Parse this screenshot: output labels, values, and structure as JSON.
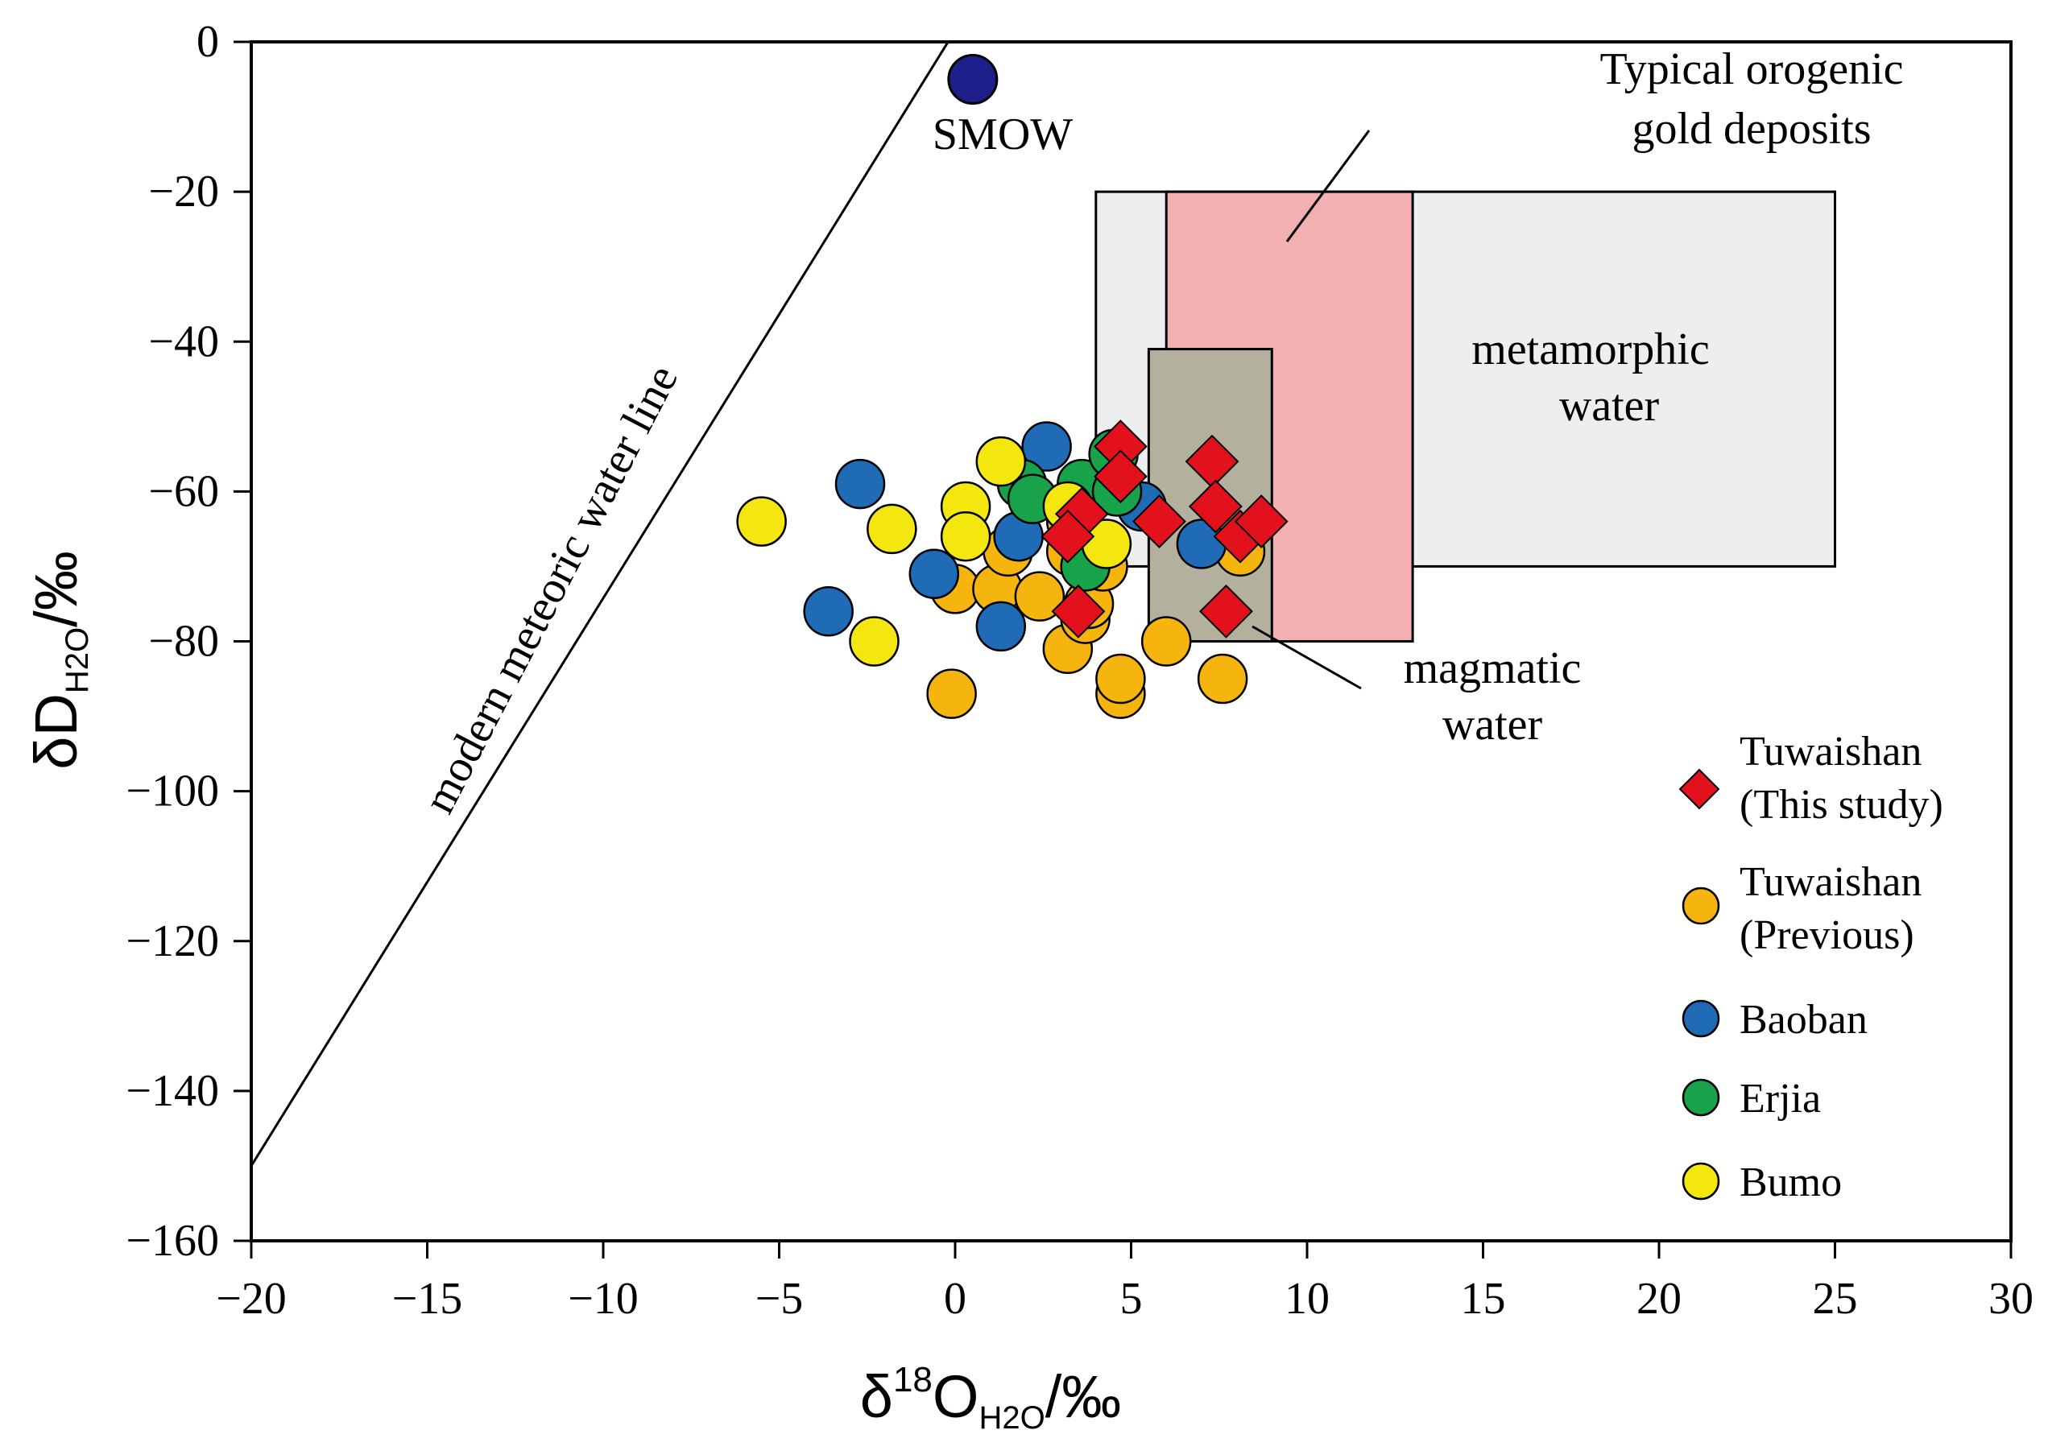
{
  "chart_data": {
    "type": "scatter",
    "title": "",
    "xlabel": {
      "delta": "δ",
      "sup": "18",
      "main": "O",
      "sub": "H2O",
      "unit": "/‰"
    },
    "ylabel": {
      "main": "δD",
      "sub": "H2O",
      "unit": "/‰"
    },
    "xlim": [
      -20,
      30
    ],
    "ylim": [
      -160,
      0
    ],
    "x_ticks": [
      -20,
      -15,
      -10,
      -5,
      0,
      5,
      10,
      15,
      20,
      25,
      30
    ],
    "y_ticks": [
      0,
      -20,
      -40,
      -60,
      -80,
      -100,
      -120,
      -140,
      -160
    ],
    "tick_label_minus": "−",
    "grid": false,
    "reference_line": {
      "label": "modern meteoric water line",
      "x1": -20,
      "y1": -150,
      "x2": -0.2,
      "y2": 0
    },
    "smow": {
      "label": "SMOW",
      "x": 0.5,
      "y": -5,
      "color": "#1f1f8c"
    },
    "regions": [
      {
        "name": "metamorphic-water",
        "label_lines": [
          "metamorphic",
          "water"
        ],
        "x0": 4,
        "x1": 25,
        "y0": -70,
        "y1": -20,
        "color": "#eeeeee"
      },
      {
        "name": "orogenic-gold",
        "label_lines": [
          "Typical orogenic",
          "gold deposits"
        ],
        "x0": 6,
        "x1": 13,
        "y0": -80,
        "y1": -20,
        "color": "#f2b0b1"
      },
      {
        "name": "magmatic-water",
        "label_lines": [
          "magmatic",
          "water"
        ],
        "x0": 5.5,
        "x1": 9,
        "y0": -80,
        "y1": -41,
        "color": "#b3b19d"
      }
    ],
    "legend_position": "right",
    "series": [
      {
        "name": "Tuwaishan (Previous)",
        "legend_lines": [
          "Tuwaishan",
          "(Previous)"
        ],
        "marker": "circle",
        "color": "#f5b50e",
        "points": [
          [
            0,
            -73
          ],
          [
            -0.1,
            -87
          ],
          [
            1.2,
            -73
          ],
          [
            2.4,
            -74
          ],
          [
            3.2,
            -81
          ],
          [
            3.7,
            -77
          ],
          [
            3.8,
            -75
          ],
          [
            4.7,
            -87
          ],
          [
            4.7,
            -85
          ],
          [
            6.0,
            -80
          ],
          [
            7.6,
            -85
          ],
          [
            8.1,
            -68
          ],
          [
            3.3,
            -68
          ],
          [
            1.5,
            -68
          ],
          [
            3.3,
            -64
          ],
          [
            4.2,
            -70
          ]
        ]
      },
      {
        "name": "Baoban",
        "legend_lines": [
          "Baoban"
        ],
        "marker": "circle",
        "color": "#1f6bb5",
        "points": [
          [
            -2.7,
            -59
          ],
          [
            -3.6,
            -76
          ],
          [
            -0.6,
            -71
          ],
          [
            1.3,
            -78
          ],
          [
            1.8,
            -66
          ],
          [
            2.6,
            -54
          ],
          [
            5.3,
            -62
          ],
          [
            7.0,
            -67
          ]
        ]
      },
      {
        "name": "Erjia",
        "legend_lines": [
          "Erjia"
        ],
        "marker": "circle",
        "color": "#18a24a",
        "points": [
          [
            1.9,
            -59
          ],
          [
            2.2,
            -61
          ],
          [
            3.6,
            -59
          ],
          [
            3.7,
            -70
          ],
          [
            4.5,
            -55
          ],
          [
            4.6,
            -60
          ]
        ]
      },
      {
        "name": "Bumo",
        "legend_lines": [
          "Bumo"
        ],
        "marker": "circle",
        "color": "#f4e70f",
        "points": [
          [
            -5.5,
            -64
          ],
          [
            -1.8,
            -65
          ],
          [
            -2.3,
            -80
          ],
          [
            0.3,
            -62
          ],
          [
            0.3,
            -66
          ],
          [
            1.3,
            -56
          ],
          [
            3.2,
            -62
          ],
          [
            4.3,
            -67
          ]
        ]
      },
      {
        "name": "Tuwaishan (This study)",
        "legend_lines": [
          "Tuwaishan",
          "(This study)"
        ],
        "marker": "diamond",
        "color": "#e3111b",
        "points": [
          [
            4.7,
            -54
          ],
          [
            4.7,
            -58
          ],
          [
            3.6,
            -63
          ],
          [
            3.2,
            -66
          ],
          [
            3.5,
            -76
          ],
          [
            5.8,
            -64
          ],
          [
            7.3,
            -56
          ],
          [
            7.4,
            -62
          ],
          [
            7.7,
            -76
          ],
          [
            8.1,
            -66
          ],
          [
            8.7,
            -64
          ]
        ]
      }
    ]
  }
}
